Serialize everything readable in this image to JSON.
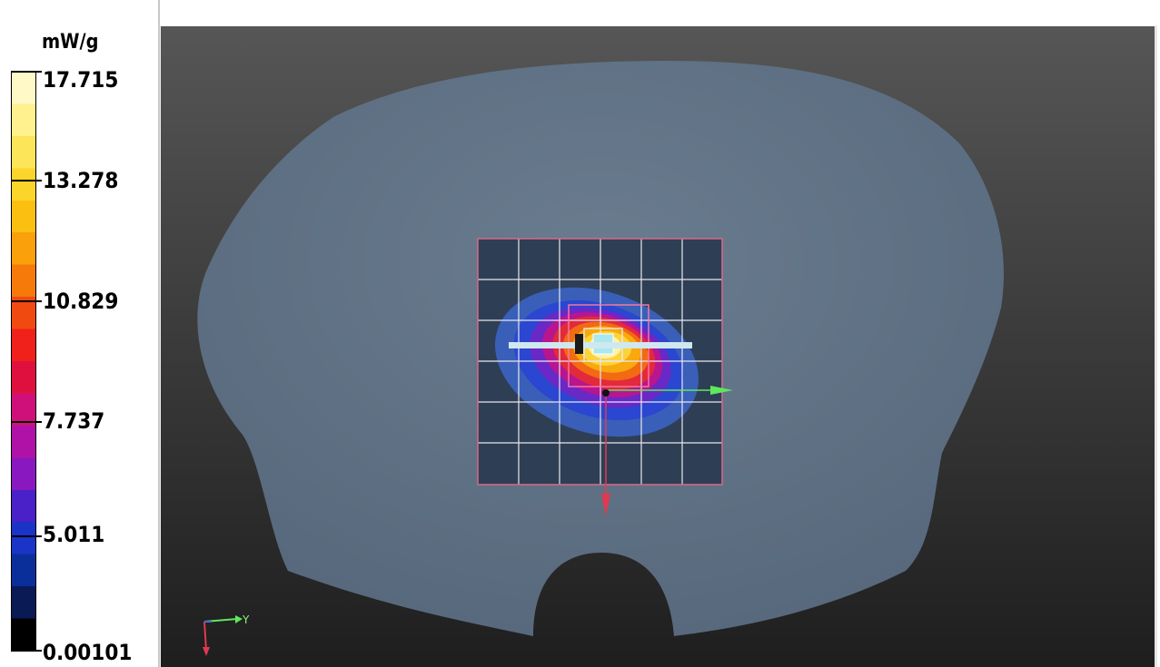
{
  "legend": {
    "unit": "mW/g",
    "labels": [
      "17.715",
      "13.278",
      "10.829",
      "7.737",
      "5.011",
      "0.00101"
    ],
    "colors": [
      "#000000",
      "#0a1a55",
      "#0b2f9a",
      "#1a34c8",
      "#4a20c8",
      "#8a18c0",
      "#b012a8",
      "#d0107a",
      "#e0103e",
      "#f0201a",
      "#f04a10",
      "#f57a0a",
      "#f9a00a",
      "#fbbf12",
      "#fcd52a",
      "#fde55a",
      "#fef18e",
      "#fff9c8"
    ]
  },
  "viewport": {
    "axis_triad": {
      "y_label": "Y"
    },
    "colors": {
      "background_dark": "#2b2b2b",
      "phantom": "#5f7184",
      "grid_line": "#e8e8ee",
      "grid_border": "#d56a8a",
      "probe_bar": "#cfe8f0",
      "y_arrow": "#5fe85a",
      "x_arrow": "#e03a50"
    }
  }
}
